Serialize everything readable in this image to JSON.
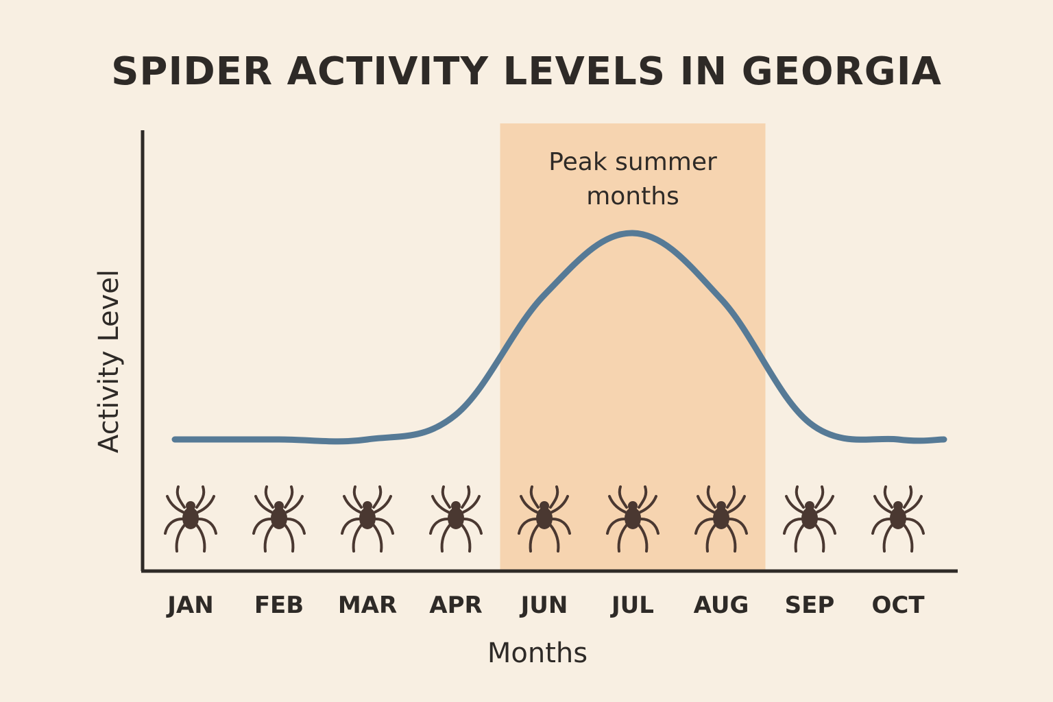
{
  "chart_data": {
    "type": "line",
    "title": "SPIDER ACTIVITY LEVELS IN GEORGIA",
    "xlabel": "Months",
    "ylabel": "Activity Level",
    "categories": [
      "JAN",
      "FEB",
      "MAR",
      "APR",
      "JUN",
      "JUL",
      "AUG",
      "SEP",
      "OCT"
    ],
    "series": [
      {
        "values": [
          1.0,
          1.0,
          1.0,
          1.6,
          4.5,
          6.0,
          4.4,
          1.4,
          1.0
        ]
      }
    ],
    "ylim": [
      0,
      7
    ],
    "grid": false,
    "highlight": {
      "label_line1": "Peak summer",
      "label_line2": "months",
      "from_category": "APR",
      "to_category": "AUG"
    },
    "icons": "spider-icon",
    "colors": {
      "background": "#f8efe2",
      "line": "#567a96",
      "highlight": "#f6d4b0",
      "axis": "#2e2a27",
      "spider": "#4a3831"
    }
  }
}
